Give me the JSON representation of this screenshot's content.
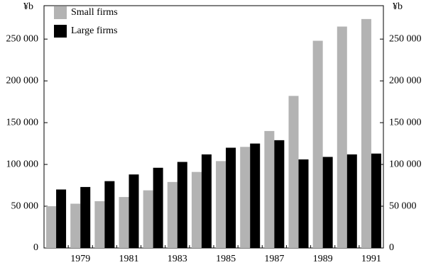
{
  "chart_data": {
    "type": "bar",
    "y_label": "¥b",
    "y2_label": "¥b",
    "categories": [
      null,
      "1979",
      null,
      "1981",
      null,
      "1983",
      null,
      "1985",
      null,
      "1987",
      null,
      "1989",
      null,
      "1991"
    ],
    "series": [
      {
        "name": "Small firms",
        "color": "#b3b3b3",
        "values": [
          50000,
          53000,
          56000,
          61000,
          69000,
          79000,
          91000,
          104000,
          121000,
          140000,
          182000,
          248000,
          265000,
          274000
        ]
      },
      {
        "name": "Large firms",
        "color": "#000000",
        "values": [
          70000,
          73000,
          80000,
          88000,
          96000,
          103000,
          112000,
          120000,
          125000,
          129000,
          106000,
          109000,
          112000,
          113000
        ]
      }
    ],
    "ylim": [
      0,
      290000
    ],
    "yticks": [
      0,
      {
        "value": 50000,
        "label": "50 000"
      },
      {
        "value": 100000,
        "label": "100 000"
      },
      {
        "value": 150000,
        "label": "150 000"
      },
      {
        "value": 200000,
        "label": "200 000"
      },
      {
        "value": 250000,
        "label": "250 000"
      }
    ],
    "y2lim": [
      0,
      290000
    ],
    "y2ticks": [
      0,
      {
        "value": 50000,
        "label": "50 000"
      },
      {
        "value": 100000,
        "label": "100 000"
      },
      {
        "value": 150000,
        "label": "150 000"
      },
      {
        "value": 200000,
        "label": "200 000"
      },
      {
        "value": 250000,
        "label": "250 000"
      }
    ],
    "legend": "top-left"
  }
}
